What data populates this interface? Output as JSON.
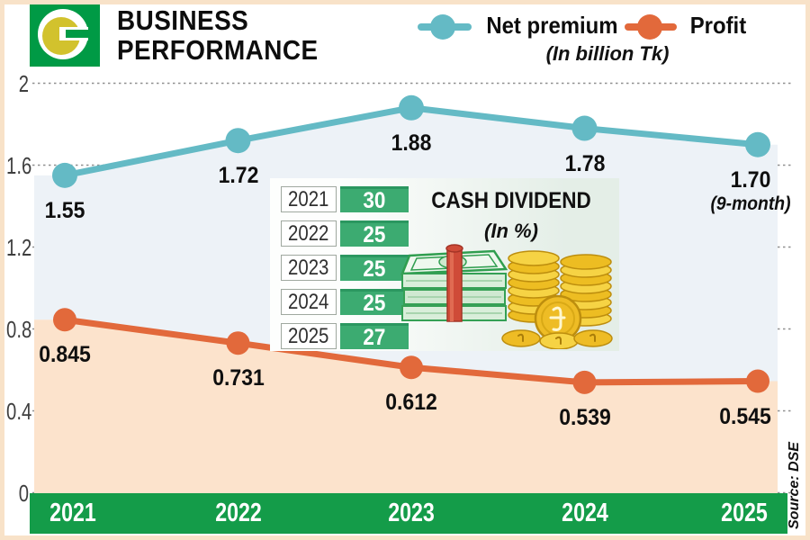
{
  "header": {
    "title_line1": "BUSINESS",
    "title_line2": "PERFORMANCE"
  },
  "legend": {
    "series": [
      {
        "label": "Net premium",
        "color": "#64bac5"
      },
      {
        "label": "Profit",
        "color": "#e2693b"
      }
    ],
    "unit_note": "(In billion Tk)"
  },
  "chart_data": {
    "type": "line",
    "title": "BUSINESS PERFORMANCE",
    "unit": "In billion Tk",
    "categories": [
      "2021",
      "2022",
      "2023",
      "2024",
      "2025"
    ],
    "series": [
      {
        "name": "Net premium",
        "color": "#64bac5",
        "area_fill": "#edf2f7",
        "values": [
          1.55,
          1.72,
          1.88,
          1.78,
          1.7
        ],
        "point_labels": [
          "1.55",
          "1.72",
          "1.88",
          "1.78",
          "1.70"
        ],
        "last_point_note": "(9-month)"
      },
      {
        "name": "Profit",
        "color": "#e2693b",
        "area_fill": "#fce3cc",
        "values": [
          0.845,
          0.731,
          0.612,
          0.539,
          0.545
        ],
        "point_labels": [
          "0.845",
          "0.731",
          "0.612",
          "0.539",
          "0.545"
        ]
      }
    ],
    "ylim": [
      0,
      2
    ],
    "yticks": [
      0,
      0.4,
      0.8,
      1.2,
      1.6,
      2
    ],
    "ytick_labels": [
      "0",
      "0.4",
      "0.8",
      "1.2",
      "1.6",
      "2"
    ],
    "grid": "horizontal-dotted",
    "legend_position": "top",
    "x_axis_bar_color": "#149c49"
  },
  "dividend_panel": {
    "title": "CASH DIVIDEND",
    "subtitle": "(In %)",
    "rows": [
      {
        "year": "2021",
        "value": "30"
      },
      {
        "year": "2022",
        "value": "25"
      },
      {
        "year": "2023",
        "value": "25"
      },
      {
        "year": "2024",
        "value": "25"
      },
      {
        "year": "2025",
        "value": "27"
      }
    ],
    "value_cell_color": "#3cab71"
  },
  "source_note": "Source: DSE",
  "colors": {
    "axis_bar_green": "#149c49",
    "logo_green": "#009a45",
    "logo_yellow": "#d2c22d",
    "frame_border": "#f8e2c8",
    "gridline": "#8f8f8f"
  }
}
